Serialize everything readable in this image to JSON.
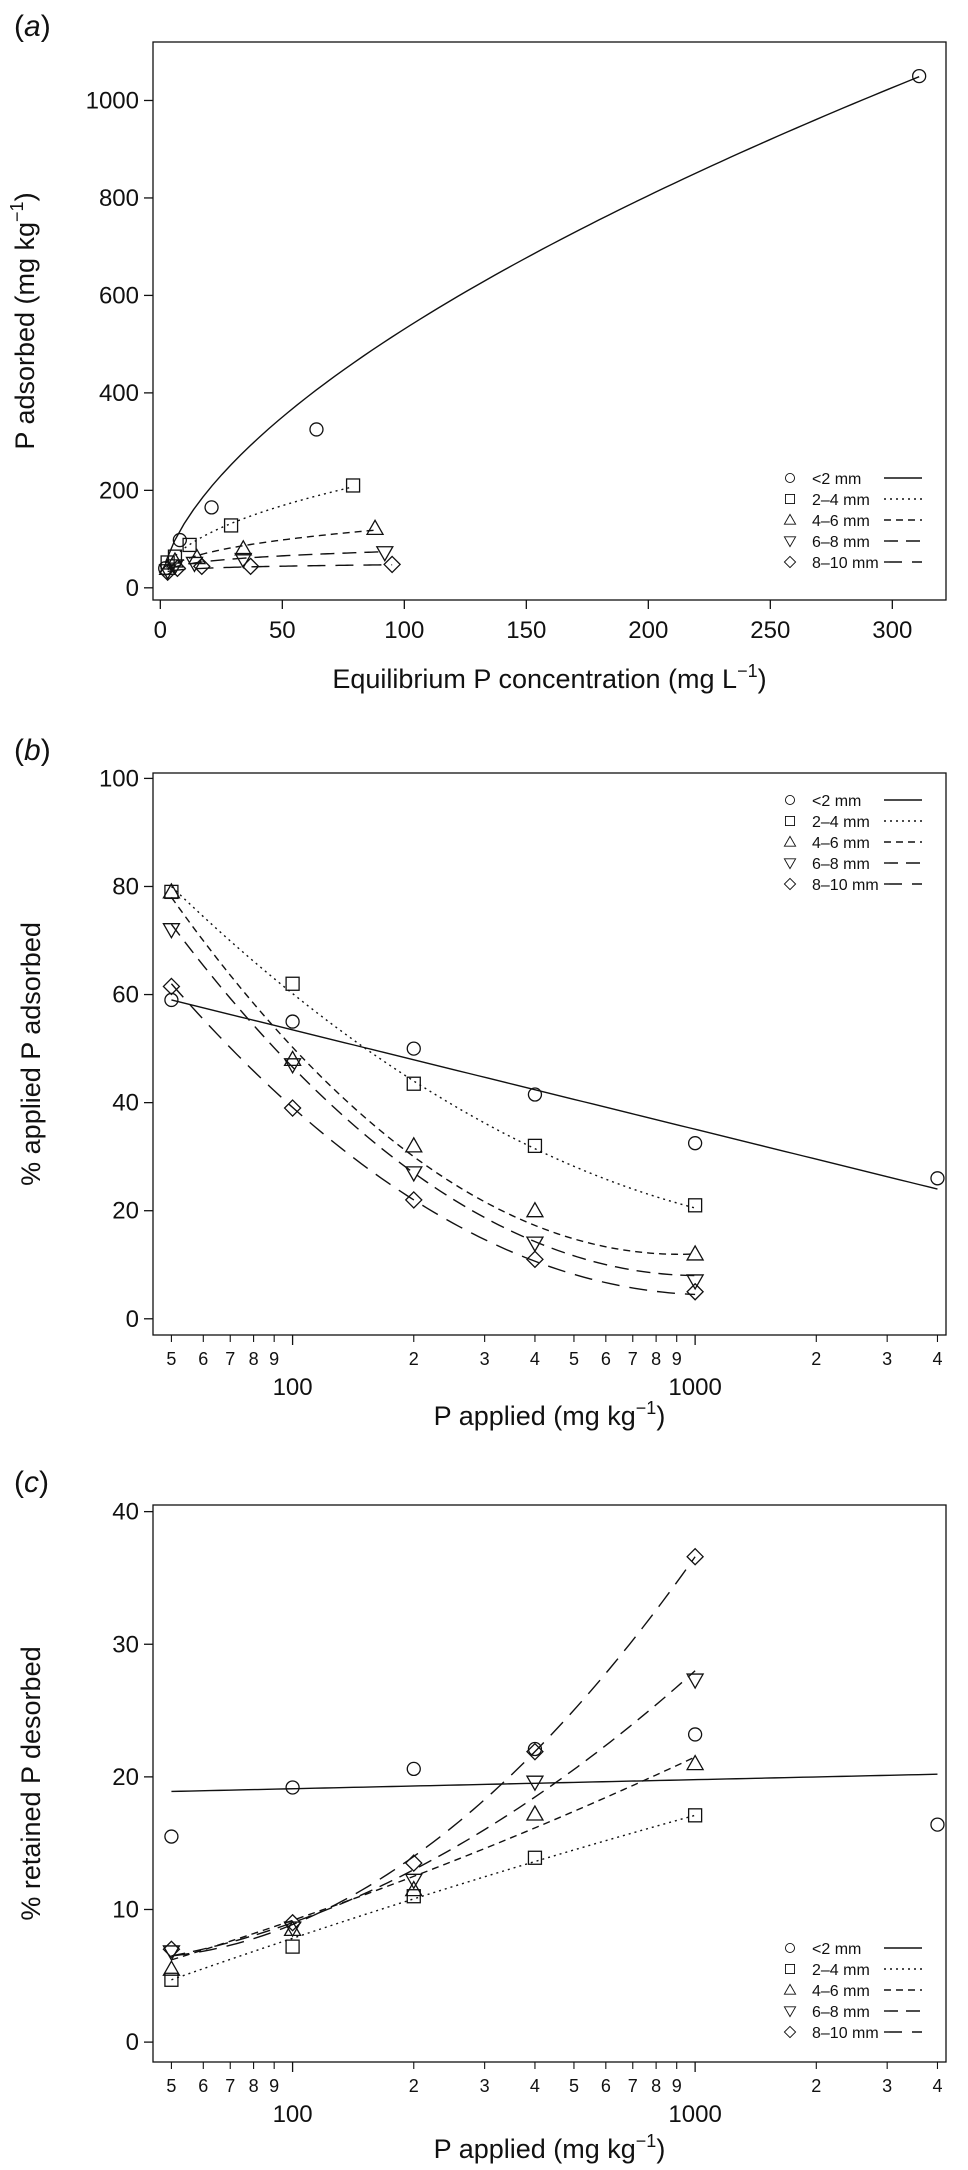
{
  "chart_data": [
    {
      "panel": "(a)",
      "type": "scatter",
      "xlabel": "Equilibrium P concentration (mg L",
      "ylabel": "P adsorbed (mg kg",
      "unit_sup": "−1",
      "xlim": [
        -3,
        322
      ],
      "ylim": [
        -25,
        1120
      ],
      "xscale": "linear",
      "xticks": [
        0,
        50,
        100,
        150,
        200,
        250,
        300
      ],
      "yticks": [
        0,
        200,
        400,
        600,
        800,
        1000
      ],
      "legend_position": "bottom-right",
      "series": [
        {
          "name": "<2 mm",
          "marker": "circle",
          "dash": "solid",
          "points": [
            [
              2,
              40
            ],
            [
              8,
              98
            ],
            [
              21,
              165
            ],
            [
              64,
              325
            ],
            [
              311,
              1050
            ]
          ],
          "fit": {
            "kind": "power",
            "a": 33.5,
            "b": 0.6,
            "range": [
              2,
              311
            ]
          }
        },
        {
          "name": "2–4 mm",
          "marker": "square",
          "dash": "dotted",
          "points": [
            [
              3,
              52
            ],
            [
              6,
              64
            ],
            [
              12,
              88
            ],
            [
              29,
              128
            ],
            [
              79,
              210
            ]
          ],
          "fit": {
            "kind": "power",
            "a": 29.0,
            "b": 0.45,
            "range": [
              3,
              79
            ]
          }
        },
        {
          "name": "4–6 mm",
          "marker": "triangle-up",
          "dash": "short-dashed",
          "points": [
            [
              3,
              40
            ],
            [
              6,
              55
            ],
            [
              15,
              62
            ],
            [
              34,
              80
            ],
            [
              88,
              122
            ]
          ],
          "fit": {
            "kind": "power",
            "a": 27.0,
            "b": 0.33,
            "range": [
              3,
              88
            ]
          }
        },
        {
          "name": "6–8 mm",
          "marker": "triangle-down",
          "dash": "long-dashed",
          "points": [
            [
              3,
              35
            ],
            [
              6,
              45
            ],
            [
              14,
              50
            ],
            [
              34,
              58
            ],
            [
              92,
              72
            ]
          ],
          "fit": {
            "kind": "power",
            "a": 30.0,
            "b": 0.2,
            "range": [
              3,
              92
            ]
          }
        },
        {
          "name": "8–10 mm",
          "marker": "diamond",
          "dash": "dash-gap",
          "points": [
            [
              3,
              32
            ],
            [
              7,
              40
            ],
            [
              17,
              44
            ],
            [
              37,
              44
            ],
            [
              95,
              48
            ]
          ],
          "fit": {
            "kind": "power",
            "a": 30.0,
            "b": 0.1,
            "range": [
              3,
              95
            ]
          }
        }
      ]
    },
    {
      "panel": "(b)",
      "type": "scatter",
      "xlabel": "P applied (mg kg",
      "ylabel": "% applied P adsorbed",
      "unit_sup": "−1",
      "xlim": [
        45,
        4200
      ],
      "ylim": [
        -3,
        101
      ],
      "xscale": "log",
      "x_major_labels": [
        {
          "v": 100,
          "t": "100"
        },
        {
          "v": 1000,
          "t": "1000"
        }
      ],
      "x_minor_labels": [
        {
          "v": 50,
          "t": "5"
        },
        {
          "v": 60,
          "t": "6"
        },
        {
          "v": 70,
          "t": "7"
        },
        {
          "v": 80,
          "t": "8"
        },
        {
          "v": 90,
          "t": "9"
        },
        {
          "v": 200,
          "t": "2"
        },
        {
          "v": 300,
          "t": "3"
        },
        {
          "v": 400,
          "t": "4"
        },
        {
          "v": 500,
          "t": "5"
        },
        {
          "v": 600,
          "t": "6"
        },
        {
          "v": 700,
          "t": "7"
        },
        {
          "v": 800,
          "t": "8"
        },
        {
          "v": 900,
          "t": "9"
        },
        {
          "v": 2000,
          "t": "2"
        },
        {
          "v": 3000,
          "t": "3"
        },
        {
          "v": 4000,
          "t": "4"
        }
      ],
      "yticks": [
        0,
        20,
        40,
        60,
        80,
        100
      ],
      "legend_position": "top-right",
      "series": [
        {
          "name": "<2 mm",
          "marker": "circle",
          "dash": "solid",
          "points": [
            [
              50,
              59
            ],
            [
              100,
              55
            ],
            [
              200,
              50
            ],
            [
              400,
              41.5
            ],
            [
              1000,
              32.5
            ],
            [
              4000,
              26
            ]
          ],
          "fit": {
            "kind": "linear-log",
            "p1": [
              50,
              59
            ],
            "p2": [
              4000,
              24
            ],
            "range": [
              50,
              4000
            ]
          }
        },
        {
          "name": "2–4 mm",
          "marker": "square",
          "dash": "dotted",
          "points": [
            [
              50,
              79
            ],
            [
              100,
              62
            ],
            [
              200,
              43.5
            ],
            [
              400,
              32
            ],
            [
              1000,
              21
            ]
          ],
          "fit": {
            "kind": "quad-log",
            "pts": [
              [
                50,
                80
              ],
              [
                200,
                44
              ],
              [
                1000,
                20.5
              ]
            ],
            "range": [
              50,
              1000
            ]
          }
        },
        {
          "name": "4–6 mm",
          "marker": "triangle-up",
          "dash": "short-dashed",
          "points": [
            [
              50,
              79
            ],
            [
              100,
              48
            ],
            [
              200,
              32
            ],
            [
              400,
              20
            ],
            [
              1000,
              12
            ]
          ],
          "fit": {
            "kind": "quad-log",
            "pts": [
              [
                50,
                78
              ],
              [
                200,
                30
              ],
              [
                1000,
                12
              ]
            ],
            "range": [
              50,
              1000
            ]
          }
        },
        {
          "name": "6–8 mm",
          "marker": "triangle-down",
          "dash": "long-dashed",
          "points": [
            [
              50,
              72
            ],
            [
              100,
              47
            ],
            [
              200,
              27
            ],
            [
              400,
              14
            ],
            [
              1000,
              7
            ]
          ],
          "fit": {
            "kind": "quad-log",
            "pts": [
              [
                50,
                73
              ],
              [
                200,
                27
              ],
              [
                1000,
                8
              ]
            ],
            "range": [
              50,
              1000
            ]
          }
        },
        {
          "name": "8–10 mm",
          "marker": "diamond",
          "dash": "dash-gap",
          "points": [
            [
              50,
              61.5
            ],
            [
              100,
              39
            ],
            [
              200,
              22
            ],
            [
              400,
              11
            ],
            [
              1000,
              5
            ]
          ],
          "fit": {
            "kind": "quad-log",
            "pts": [
              [
                50,
                62
              ],
              [
                200,
                22
              ],
              [
                1000,
                4.5
              ]
            ],
            "range": [
              50,
              1000
            ]
          }
        }
      ]
    },
    {
      "panel": "(c)",
      "type": "scatter",
      "xlabel": "P applied (mg kg",
      "ylabel": "% retained P desorbed",
      "unit_sup": "−1",
      "xlim": [
        45,
        4200
      ],
      "ylim": [
        -1.5,
        40.5
      ],
      "xscale": "log",
      "x_major_labels": [
        {
          "v": 100,
          "t": "100"
        },
        {
          "v": 1000,
          "t": "1000"
        }
      ],
      "x_minor_labels": [
        {
          "v": 50,
          "t": "5"
        },
        {
          "v": 60,
          "t": "6"
        },
        {
          "v": 70,
          "t": "7"
        },
        {
          "v": 80,
          "t": "8"
        },
        {
          "v": 90,
          "t": "9"
        },
        {
          "v": 200,
          "t": "2"
        },
        {
          "v": 300,
          "t": "3"
        },
        {
          "v": 400,
          "t": "4"
        },
        {
          "v": 500,
          "t": "5"
        },
        {
          "v": 600,
          "t": "6"
        },
        {
          "v": 700,
          "t": "7"
        },
        {
          "v": 800,
          "t": "8"
        },
        {
          "v": 900,
          "t": "9"
        },
        {
          "v": 2000,
          "t": "2"
        },
        {
          "v": 3000,
          "t": "3"
        },
        {
          "v": 4000,
          "t": "4"
        }
      ],
      "yticks": [
        0,
        10,
        20,
        30,
        40
      ],
      "legend_position": "bottom-right",
      "series": [
        {
          "name": "<2 mm",
          "marker": "circle",
          "dash": "solid",
          "points": [
            [
              50,
              15.5
            ],
            [
              100,
              19.2
            ],
            [
              200,
              20.6
            ],
            [
              400,
              22.1
            ],
            [
              1000,
              23.2
            ],
            [
              4000,
              16.4
            ]
          ],
          "fit": {
            "kind": "linear-log",
            "p1": [
              50,
              18.9
            ],
            "p2": [
              4000,
              20.2
            ],
            "range": [
              50,
              4000
            ]
          }
        },
        {
          "name": "2–4 mm",
          "marker": "square",
          "dash": "dotted",
          "points": [
            [
              50,
              4.7
            ],
            [
              100,
              7.2
            ],
            [
              200,
              11
            ],
            [
              400,
              13.9
            ],
            [
              1000,
              17.1
            ]
          ],
          "fit": {
            "kind": "quad-log",
            "pts": [
              [
                50,
                4.7
              ],
              [
                200,
                10.8
              ],
              [
                1000,
                17.1
              ]
            ],
            "range": [
              50,
              1000
            ]
          }
        },
        {
          "name": "4–6 mm",
          "marker": "triangle-up",
          "dash": "short-dashed",
          "points": [
            [
              50,
              5.5
            ],
            [
              100,
              8.5
            ],
            [
              200,
              11.5
            ],
            [
              400,
              17.2
            ],
            [
              1000,
              21
            ]
          ],
          "fit": {
            "kind": "quad-log",
            "pts": [
              [
                50,
                6.2
              ],
              [
                200,
                12.5
              ],
              [
                1000,
                21.5
              ]
            ],
            "range": [
              50,
              1000
            ]
          }
        },
        {
          "name": "6–8 mm",
          "marker": "triangle-down",
          "dash": "long-dashed",
          "points": [
            [
              50,
              6.8
            ],
            [
              100,
              8.6
            ],
            [
              200,
              12.2
            ],
            [
              400,
              19.6
            ],
            [
              1000,
              27.3
            ]
          ],
          "fit": {
            "kind": "quad-log",
            "pts": [
              [
                50,
                6.5
              ],
              [
                200,
                13
              ],
              [
                1000,
                28
              ]
            ],
            "range": [
              50,
              1000
            ]
          }
        },
        {
          "name": "8–10 mm",
          "marker": "diamond",
          "dash": "dash-gap",
          "points": [
            [
              50,
              7
            ],
            [
              100,
              9
            ],
            [
              200,
              13.5
            ],
            [
              400,
              21.9
            ],
            [
              1000,
              36.6
            ]
          ],
          "fit": {
            "kind": "quad-log",
            "pts": [
              [
                50,
                6.5
              ],
              [
                200,
                14
              ],
              [
                1000,
                36.6
              ]
            ],
            "range": [
              50,
              1000
            ]
          }
        }
      ]
    }
  ]
}
